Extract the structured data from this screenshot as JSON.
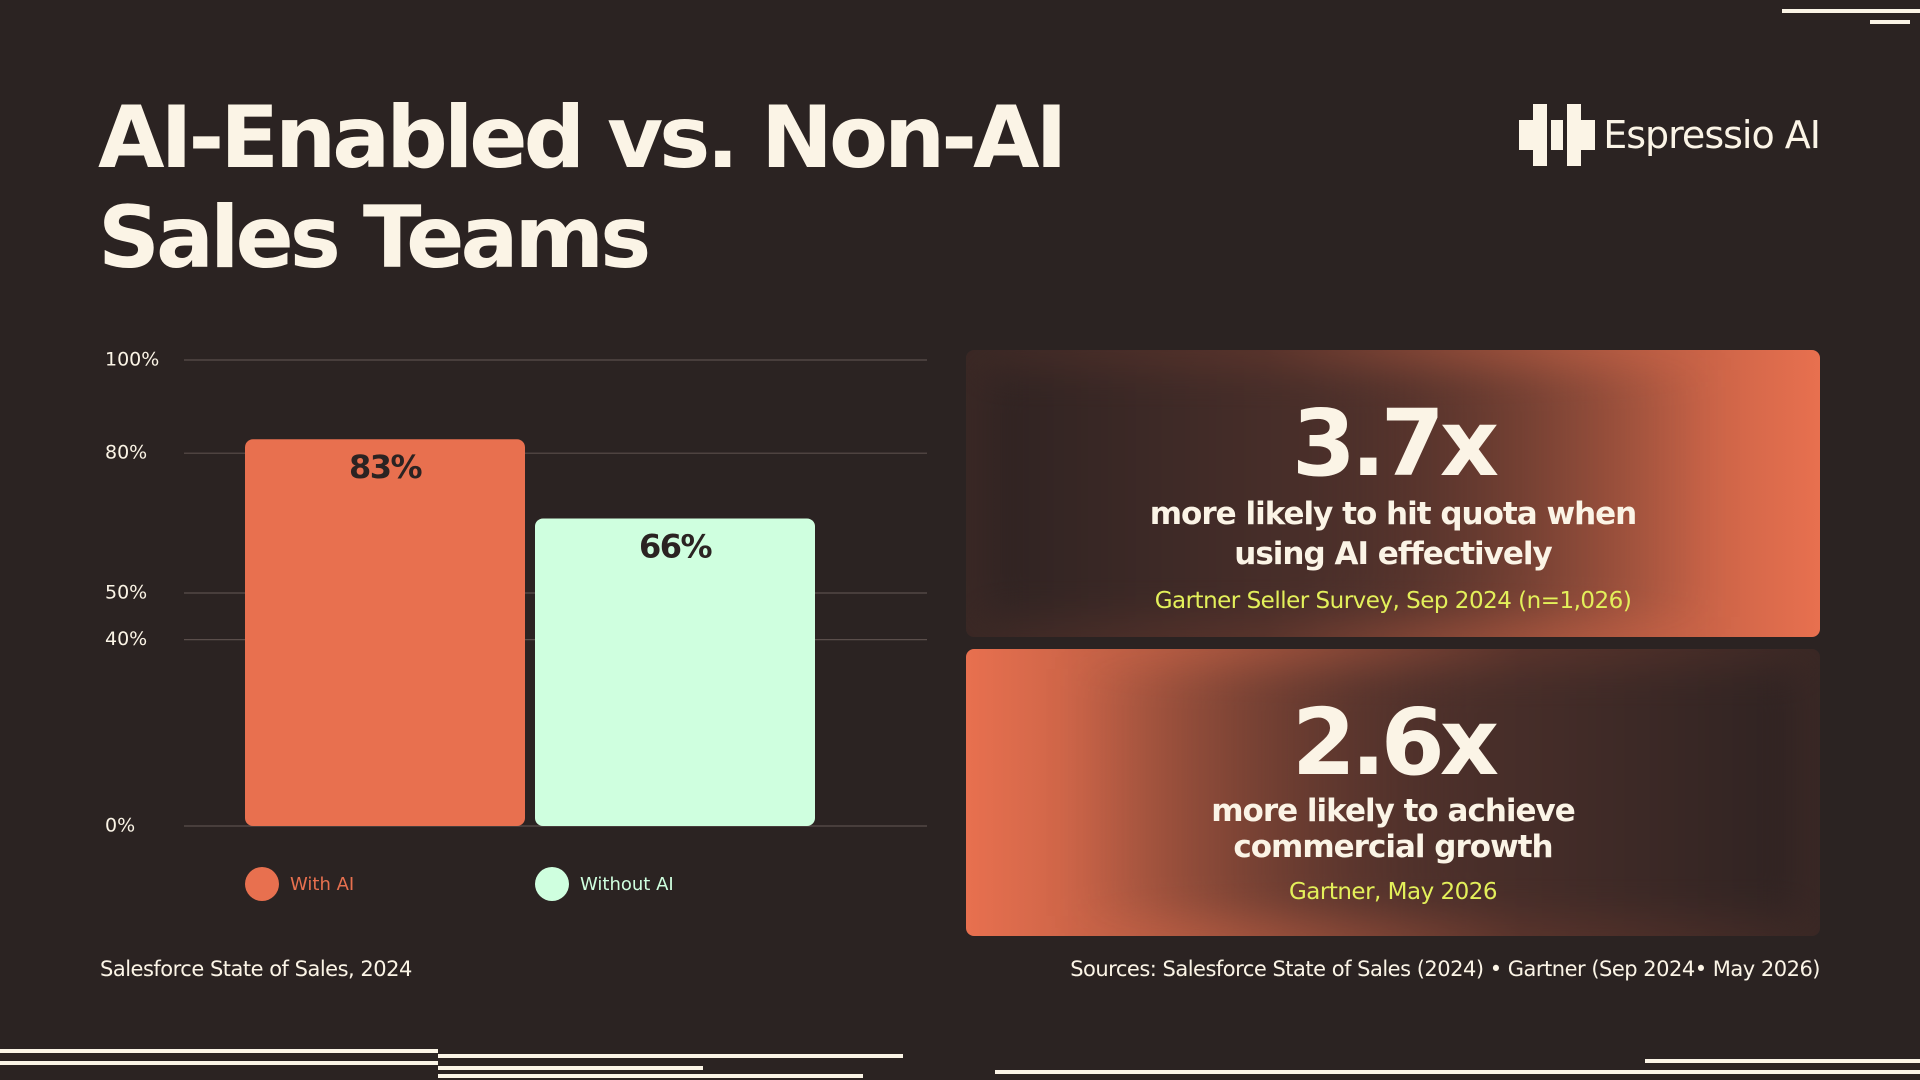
{
  "title_lines": [
    "AI-Enabled vs. Non-AI",
    "Sales Teams"
  ],
  "logo": "Espressio AI",
  "chart_data": {
    "type": "bar",
    "categories": [
      "With AI",
      "Without AI"
    ],
    "series": [
      {
        "name": "With AI",
        "color": "#e8704f",
        "values": [
          83,
          null
        ],
        "value_labels": [
          "83%",
          null
        ]
      },
      {
        "name": "Without AI",
        "color": "#cfffdf",
        "values": [
          null,
          66
        ],
        "value_labels": [
          null,
          "66%"
        ]
      }
    ],
    "ylim": [
      0,
      100
    ],
    "yticks": [
      {
        "value": 100,
        "label": "100%"
      },
      {
        "value": 80,
        "label": "80%"
      },
      {
        "value": 50,
        "label": "50%"
      },
      {
        "value": 40,
        "label": "40%"
      },
      {
        "value": 0,
        "label": "0%"
      }
    ],
    "grid": true,
    "source": "Salesforce State of Sales, 2024"
  },
  "stats": [
    {
      "value": "3.7x",
      "description": [
        "more likely to hit quota when",
        "using AI effectively"
      ],
      "source": "Gartner Seller Survey, Sep 2024 (n=1,026)"
    },
    {
      "value": "2.6x",
      "description": [
        "more likely to achieve",
        "commercial growth"
      ],
      "source": "Gartner, May 2026"
    }
  ],
  "footer": "Sources: Salesforce State of Sales (2024) • Gartner (Sep 2024• May 2026)"
}
